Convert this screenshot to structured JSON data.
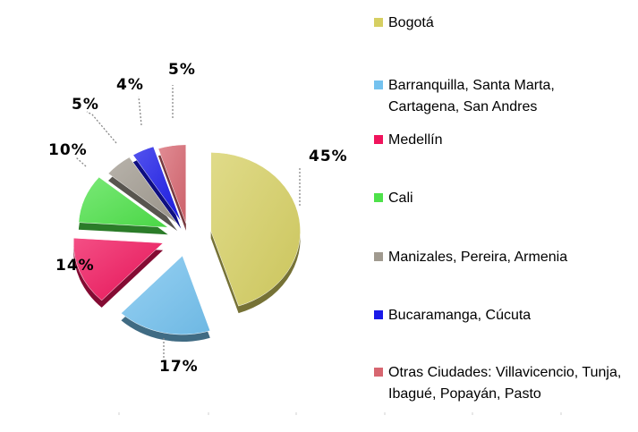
{
  "chart_data": {
    "type": "pie",
    "title": "",
    "legend_position": "right",
    "categories": [
      "Bogotá",
      "Barranquilla, Santa Marta, Cartagena, San Andres",
      "Medellín",
      "Cali",
      "Manizales, Pereira, Armenia",
      "Bucaramanga, Cúcuta",
      "Otras Ciudades: Villavicencio, Tunja, Ibagué, Popayán, Pasto"
    ],
    "values": [
      45,
      17,
      14,
      10,
      5,
      4,
      5
    ],
    "labels": [
      "45%",
      "17%",
      "14%",
      "10%",
      "5%",
      "4%",
      "5%"
    ],
    "colors": [
      "#d6cf62",
      "#74c2ef",
      "#f0145c",
      "#4ee14a",
      "#a09a8f",
      "#1a1ae8",
      "#d76670"
    ]
  }
}
